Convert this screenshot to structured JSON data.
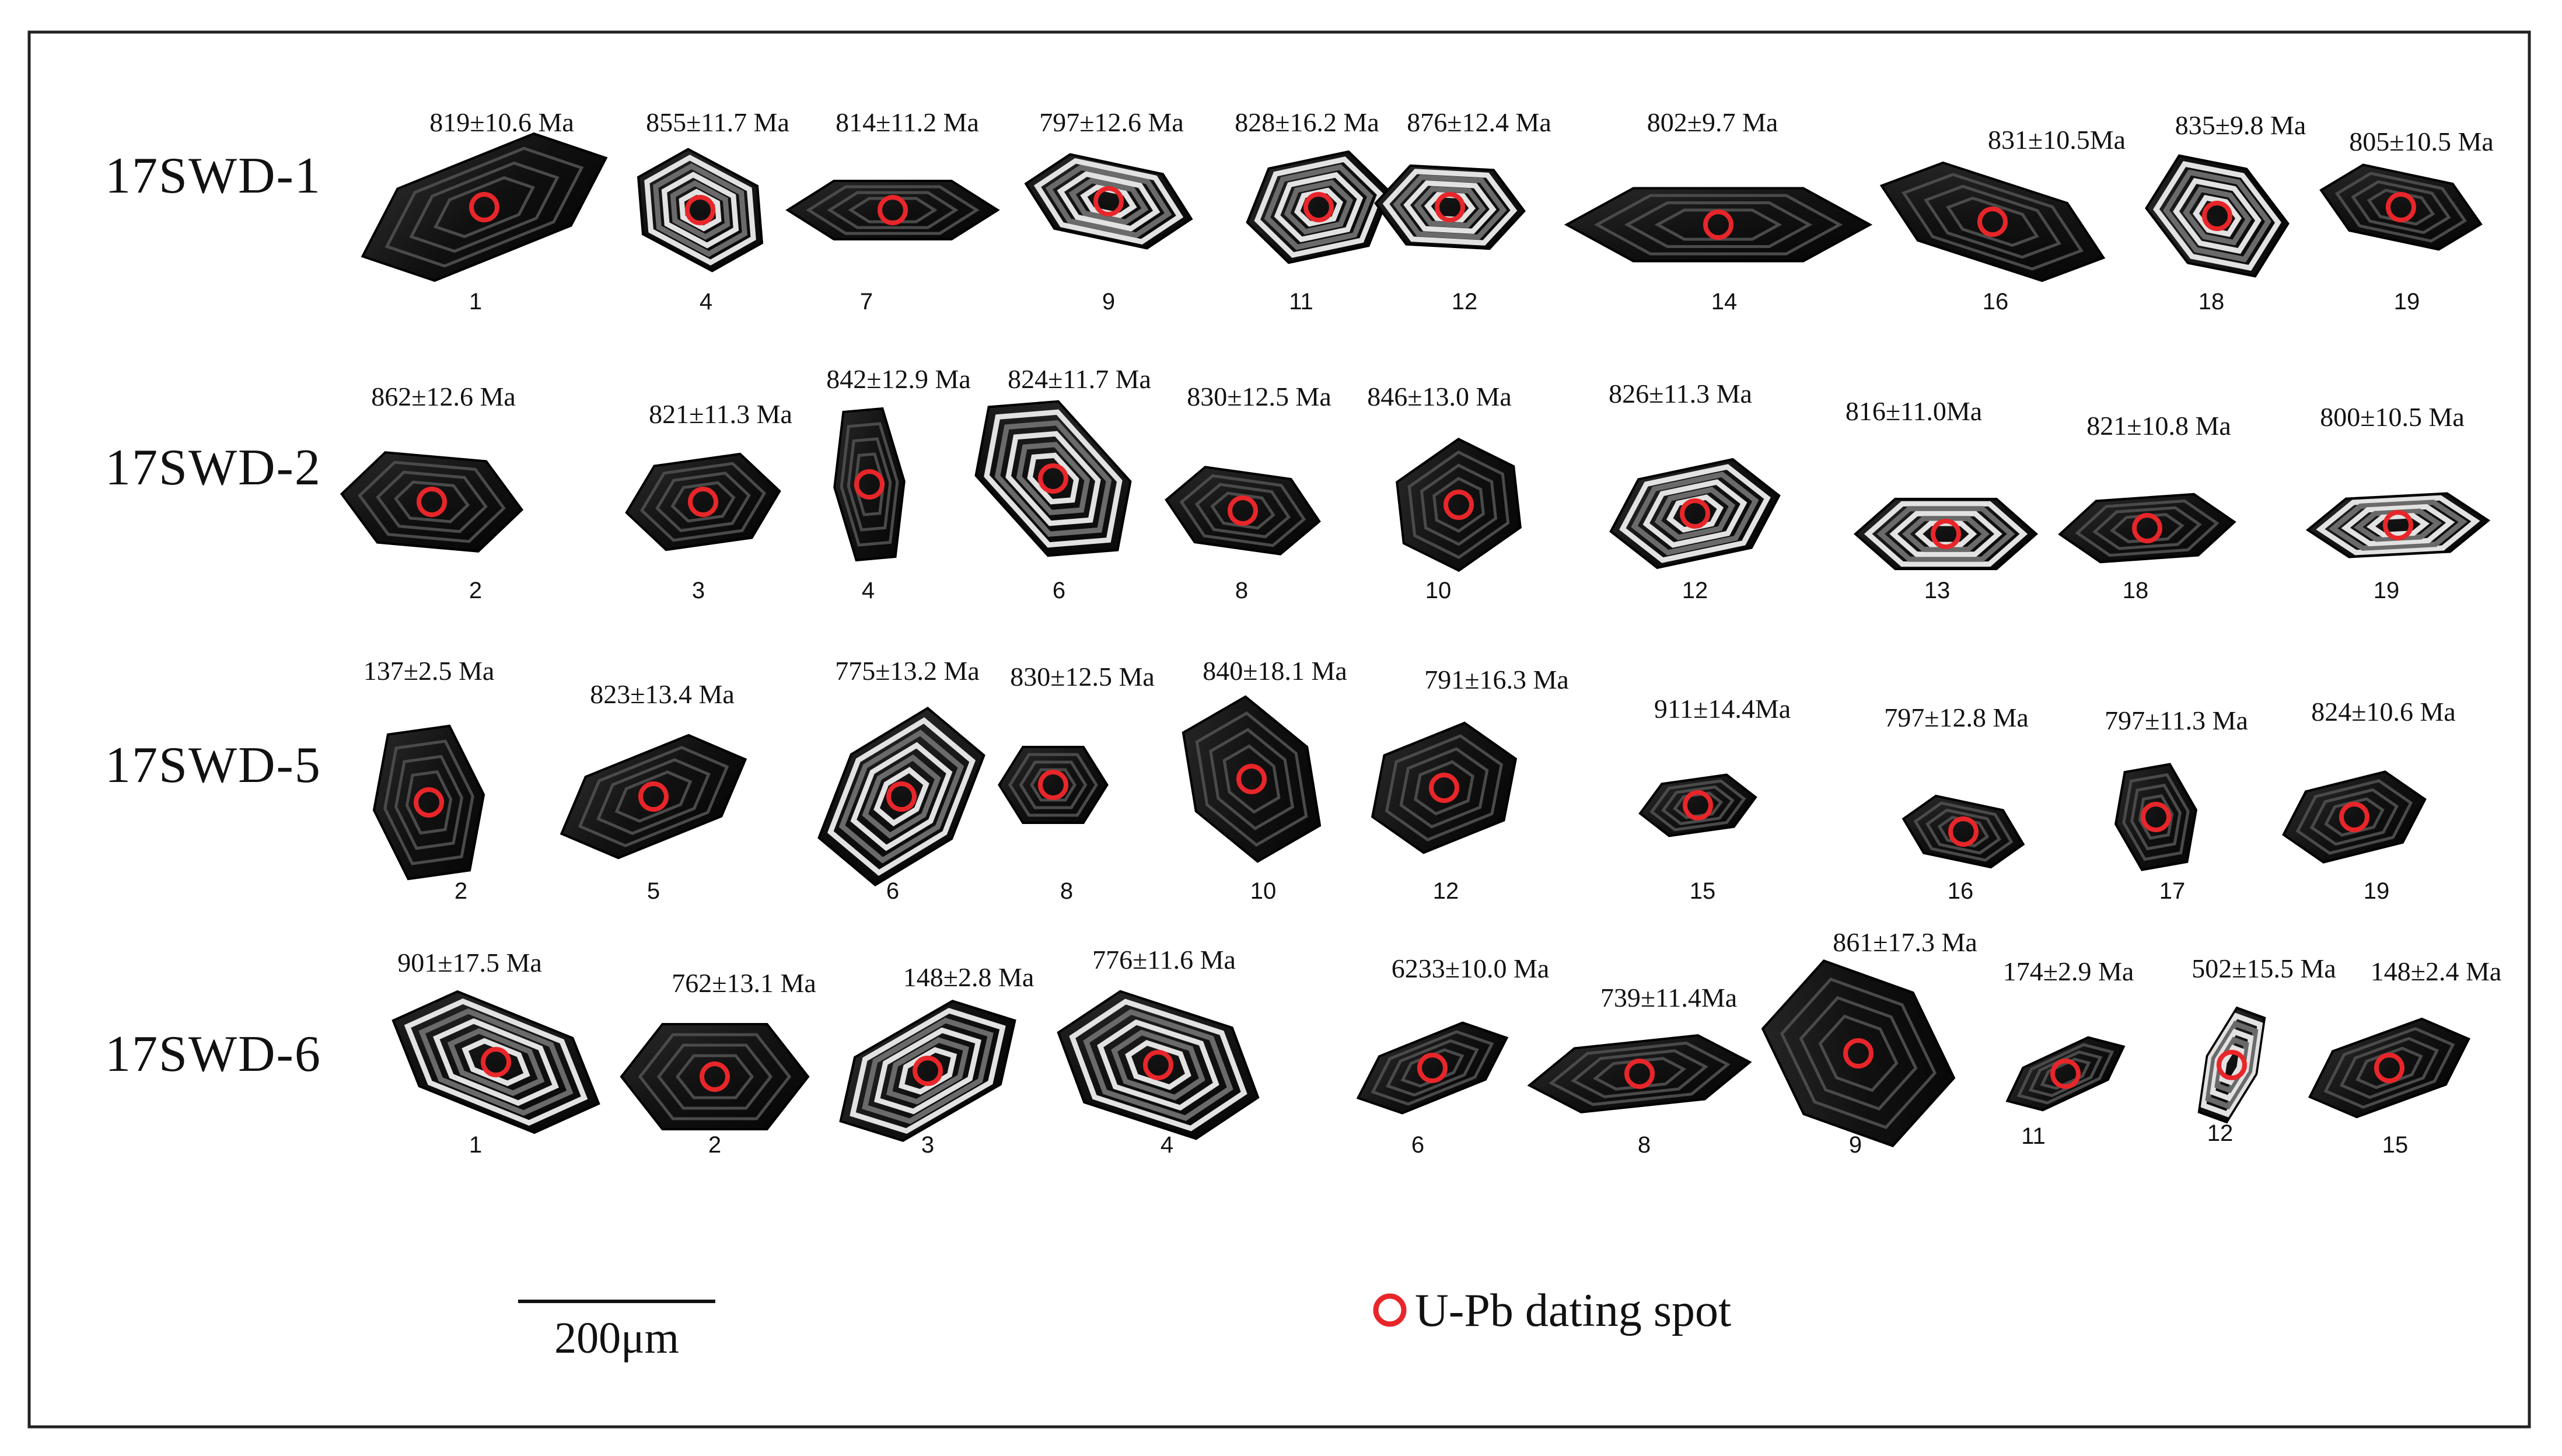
{
  "rows": [
    {
      "label": "17SWD-1",
      "grains": [
        {
          "age": "819±10.6 Ma",
          "num": "1"
        },
        {
          "age": "855±11.7 Ma",
          "num": "4"
        },
        {
          "age": "814±11.2 Ma",
          "num": "7"
        },
        {
          "age": "797±12.6 Ma",
          "num": "9"
        },
        {
          "age": "828±16.2 Ma",
          "num": "11"
        },
        {
          "age": "876±12.4 Ma",
          "num": "12"
        },
        {
          "age": "802±9.7 Ma",
          "num": "14"
        },
        {
          "age": "831±10.5Ma",
          "num": "16"
        },
        {
          "age": "835±9.8 Ma",
          "num": "18"
        },
        {
          "age": "805±10.5 Ma",
          "num": "19"
        }
      ]
    },
    {
      "label": "17SWD-2",
      "grains": [
        {
          "age": "862±12.6 Ma",
          "num": "2"
        },
        {
          "age": "821±11.3 Ma",
          "num": "3"
        },
        {
          "age": "842±12.9 Ma",
          "num": "4"
        },
        {
          "age": "824±11.7 Ma",
          "num": "6"
        },
        {
          "age": "830±12.5 Ma",
          "num": "8"
        },
        {
          "age": "846±13.0 Ma",
          "num": "10"
        },
        {
          "age": "826±11.3 Ma",
          "num": "12"
        },
        {
          "age": "816±11.0Ma",
          "num": "13"
        },
        {
          "age": "821±10.8 Ma",
          "num": "18"
        },
        {
          "age": "800±10.5 Ma",
          "num": "19"
        }
      ]
    },
    {
      "label": "17SWD-5",
      "grains": [
        {
          "age": "137±2.5 Ma",
          "num": "2"
        },
        {
          "age": "823±13.4 Ma",
          "num": "5"
        },
        {
          "age": "775±13.2 Ma",
          "num": "6"
        },
        {
          "age": "830±12.5 Ma",
          "num": "8"
        },
        {
          "age": "840±18.1 Ma",
          "num": "10"
        },
        {
          "age": "791±16.3 Ma",
          "num": "12"
        },
        {
          "age": "911±14.4Ma",
          "num": "15"
        },
        {
          "age": "797±12.8 Ma",
          "num": "16"
        },
        {
          "age": "797±11.3 Ma",
          "num": "17"
        },
        {
          "age": "824±10.6 Ma",
          "num": "19"
        }
      ]
    },
    {
      "label": "17SWD-6",
      "grains": [
        {
          "age": "901±17.5 Ma",
          "num": "1"
        },
        {
          "age": "762±13.1 Ma",
          "num": "2"
        },
        {
          "age": "148±2.8 Ma",
          "num": "3"
        },
        {
          "age": "776±11.6 Ma",
          "num": "4"
        },
        {
          "age": "6233±10.0 Ma",
          "num": "6"
        },
        {
          "age": "739±11.4Ma",
          "num": "8"
        },
        {
          "age": "861±17.3 Ma",
          "num": "9"
        },
        {
          "age": "174±2.9 Ma",
          "num": "11"
        },
        {
          "age": "502±15.5 Ma",
          "num": "12"
        },
        {
          "age": "148±2.4 Ma",
          "num": "15"
        }
      ]
    }
  ],
  "legend": {
    "label": "U-Pb dating spot",
    "marker_color": "#e8262a"
  },
  "scale_bar": {
    "label": "200μm"
  },
  "colors": {
    "grain_dark": "#151515",
    "grain_light": "#d8d8d8",
    "frame": "#222222"
  }
}
